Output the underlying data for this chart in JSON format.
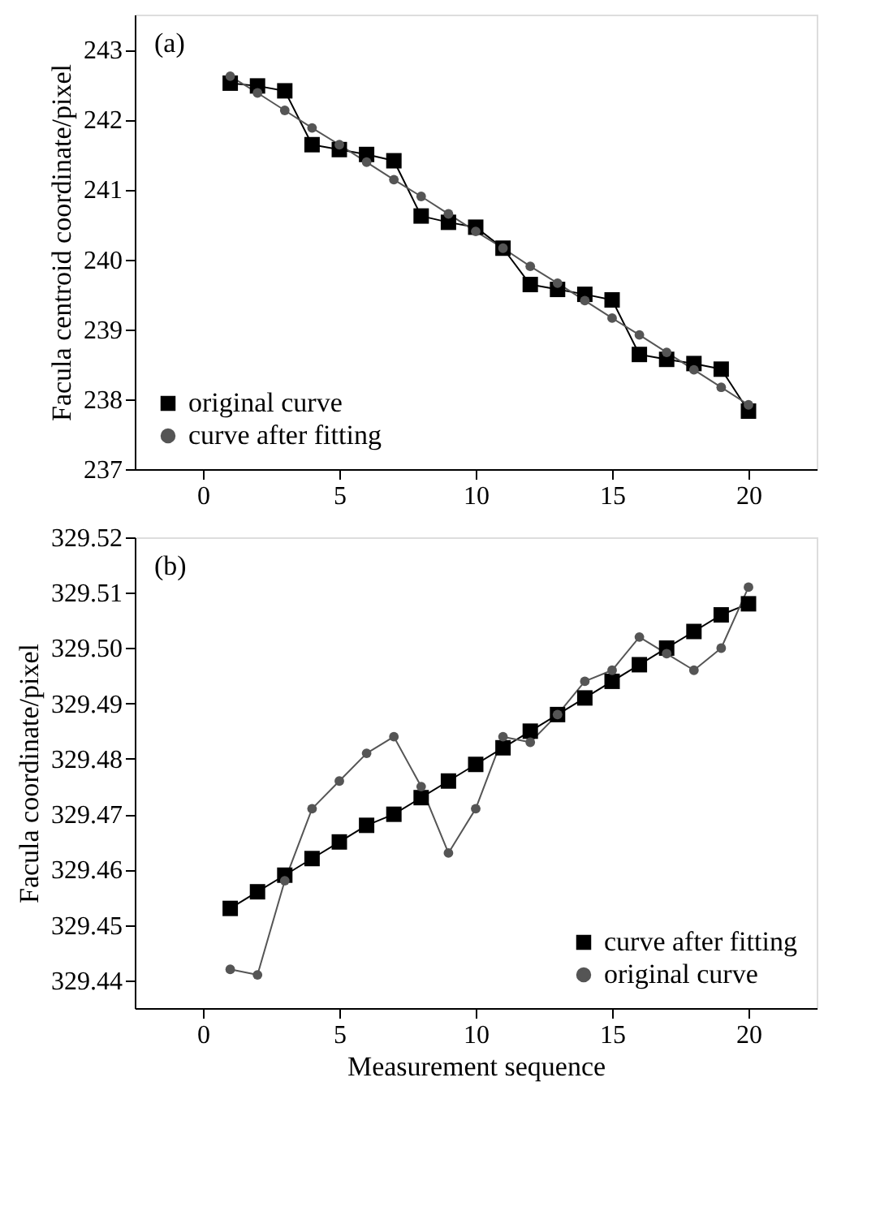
{
  "chart_data": [
    {
      "type": "line",
      "annotations": [
        "(a)"
      ],
      "ylabel": "Facula centroid coordinate/pixel",
      "x": [
        1,
        2,
        3,
        4,
        5,
        6,
        7,
        8,
        9,
        10,
        11,
        12,
        13,
        14,
        15,
        16,
        17,
        18,
        19,
        20
      ],
      "series": [
        {
          "name": "original curve",
          "color": "#000000",
          "marker": "square",
          "values": [
            242.52,
            242.48,
            242.41,
            241.64,
            241.57,
            241.5,
            241.41,
            240.62,
            240.53,
            240.46,
            240.16,
            239.64,
            239.57,
            239.5,
            239.42,
            238.64,
            238.57,
            238.51,
            238.43,
            237.83
          ]
        },
        {
          "name": "curve after fitting",
          "color": "#555555",
          "marker": "circle",
          "values": [
            242.62,
            242.38,
            242.13,
            241.88,
            241.64,
            241.39,
            241.14,
            240.9,
            240.65,
            240.4,
            240.16,
            239.9,
            239.66,
            239.41,
            239.16,
            238.92,
            238.67,
            238.42,
            238.17,
            237.92
          ]
        }
      ],
      "xlim": [
        -2.5,
        22.5
      ],
      "xticks": [
        0,
        5,
        10,
        15,
        20
      ],
      "ylim": [
        237,
        243.5
      ],
      "yticks": [
        237,
        238,
        239,
        240,
        241,
        242,
        243
      ],
      "grid": false,
      "legend": "bottom left",
      "line_style": "solid"
    },
    {
      "type": "line",
      "annotations": [
        "(b)"
      ],
      "xlabel": "Measurement sequence",
      "ylabel": "Facula coordinate/pixel",
      "x": [
        1,
        2,
        3,
        4,
        5,
        6,
        7,
        8,
        9,
        10,
        11,
        12,
        13,
        14,
        15,
        16,
        17,
        18,
        19,
        20
      ],
      "series": [
        {
          "name": "curve after fitting",
          "color": "#000000",
          "marker": "square",
          "values": [
            329.453,
            329.456,
            329.459,
            329.462,
            329.465,
            329.468,
            329.47,
            329.473,
            329.476,
            329.479,
            329.482,
            329.485,
            329.488,
            329.491,
            329.494,
            329.497,
            329.5,
            329.503,
            329.506,
            329.508
          ]
        },
        {
          "name": "original curve",
          "color": "#555555",
          "marker": "circle",
          "values": [
            329.442,
            329.441,
            329.458,
            329.471,
            329.476,
            329.481,
            329.484,
            329.475,
            329.463,
            329.471,
            329.484,
            329.483,
            329.488,
            329.494,
            329.496,
            329.502,
            329.499,
            329.496,
            329.5,
            329.511
          ]
        }
      ],
      "xlim": [
        -2.5,
        22.5
      ],
      "xticks": [
        0,
        5,
        10,
        15,
        20
      ],
      "ylim": [
        329.435,
        329.52
      ],
      "yticks": [
        329.44,
        329.45,
        329.46,
        329.47,
        329.48,
        329.49,
        {
          "value": 329.5,
          "label": "329.50"
        },
        329.51,
        329.52
      ],
      "grid": false,
      "legend": "bottom right",
      "line_style": "solid"
    }
  ]
}
